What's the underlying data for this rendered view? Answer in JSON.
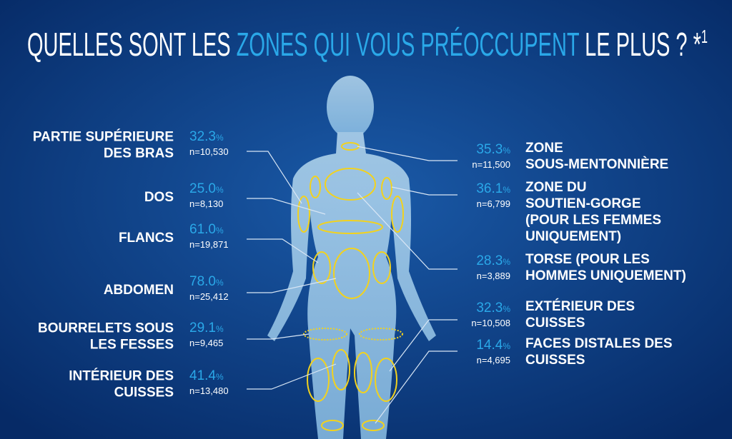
{
  "title": {
    "part1": "QUELLES SONT LES ",
    "part2": "ZONES QUI VOUS PRÉOCCUPENT",
    "part3": " LE PLUS ? *",
    "sup": "1"
  },
  "left": [
    {
      "label": [
        "PARTIE SUPÉRIEURE",
        "DES BRAS"
      ],
      "percent": "32.3",
      "unit": "%",
      "n": "n=10,530"
    },
    {
      "label": [
        "DOS"
      ],
      "percent": "25.0",
      "unit": "%",
      "n": "n=8,130"
    },
    {
      "label": [
        "FLANCS"
      ],
      "percent": "61.0",
      "unit": "%",
      "n": "n=19,871"
    },
    {
      "label": [
        "ABDOMEN"
      ],
      "percent": "78.0",
      "unit": "%",
      "n": "n=25,412"
    },
    {
      "label": [
        "BOURRELETS SOUS",
        "LES FESSES"
      ],
      "percent": "29.1",
      "unit": "%",
      "n": "n=9,465"
    },
    {
      "label": [
        "INTÉRIEUR DES",
        "CUISSES"
      ],
      "percent": "41.4",
      "unit": "%",
      "n": "n=13,480"
    }
  ],
  "right": [
    {
      "label": [
        "ZONE",
        "SOUS-MENTONNIÈRE"
      ],
      "percent": "35.3",
      "unit": "%",
      "n": "n=11,500"
    },
    {
      "label": [
        "ZONE DU",
        "SOUTIEN-GORGE",
        "(POUR LES FEMMES",
        "UNIQUEMENT)"
      ],
      "percent": "36.1",
      "unit": "%",
      "n": "n=6,799"
    },
    {
      "label": [
        "TORSE (POUR LES",
        "HOMMES UNIQUEMENT)"
      ],
      "percent": "28.3",
      "unit": "%",
      "n": "n=3,889"
    },
    {
      "label": [
        "EXTÉRIEUR DES",
        "CUISSES"
      ],
      "percent": "32.3",
      "unit": "%",
      "n": "n=10,508"
    },
    {
      "label": [
        "FACES DISTALES DES",
        "CUISSES"
      ],
      "percent": "14.4",
      "unit": "%",
      "n": "n=4,695"
    }
  ]
}
